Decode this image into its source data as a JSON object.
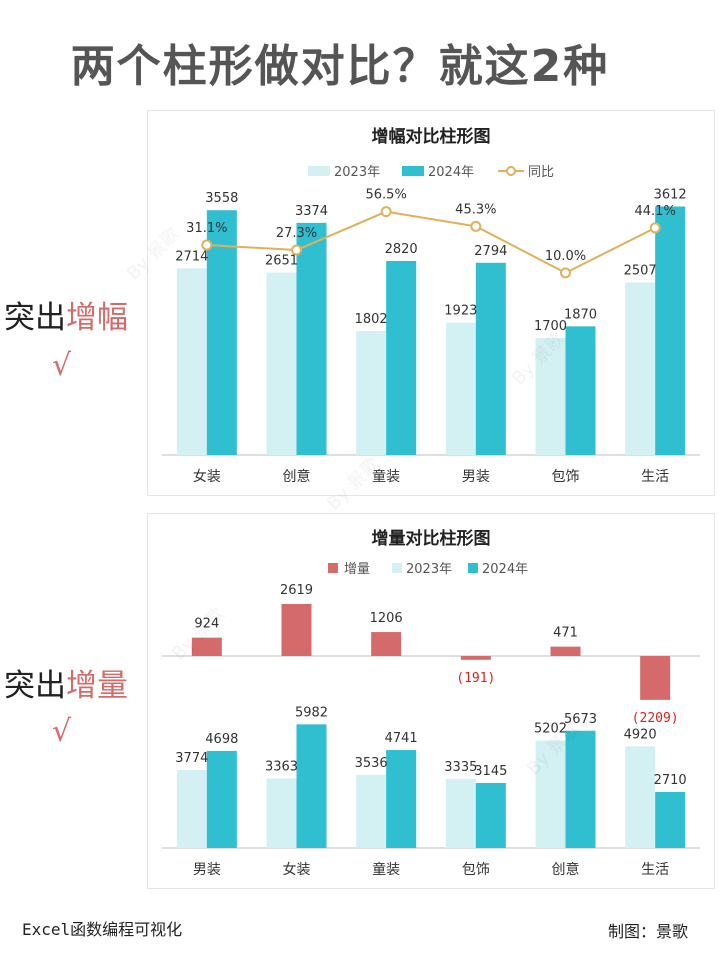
{
  "page": {
    "title": "两个柱形做对比？就这2种",
    "side_label_1_prefix": "突出",
    "side_label_1_highlight": "增幅",
    "side_label_2_prefix": "突出",
    "side_label_2_highlight": "增量",
    "check_mark": "√",
    "footer_left": "Excel函数编程可视化",
    "footer_right": "制图：景歌",
    "watermark": "By 景歌"
  },
  "colors": {
    "bar_2023": "#d3f0f3",
    "bar_2024": "#2fbfd1",
    "line": "#e0b05a",
    "increment": "#d46a6a",
    "negative_label": "#e02020",
    "highlight": "#d46a6a"
  },
  "chart_data": [
    {
      "type": "bar",
      "title": "增幅对比柱形图",
      "categories": [
        "女装",
        "创意",
        "童装",
        "男装",
        "包饰",
        "生活"
      ],
      "series": [
        {
          "name": "2023年",
          "values": [
            2714,
            2651,
            1802,
            1923,
            1700,
            2507
          ]
        },
        {
          "name": "2024年",
          "values": [
            3558,
            3374,
            2820,
            2794,
            1870,
            3612
          ]
        }
      ],
      "line_series": {
        "name": "同比",
        "values": [
          31.1,
          27.3,
          56.5,
          45.3,
          10.0,
          44.1
        ],
        "labels": [
          "31.1%",
          "27.3%",
          "56.5%",
          "45.3%",
          "10.0%",
          "44.1%"
        ]
      },
      "legend": "top",
      "grid": false
    },
    {
      "type": "bar",
      "title": "增量对比柱形图",
      "categories": [
        "男装",
        "女装",
        "童装",
        "包饰",
        "创意",
        "生活"
      ],
      "series": [
        {
          "name": "增量",
          "values": [
            924,
            2619,
            1206,
            -191,
            471,
            -2209
          ],
          "labels": [
            "924",
            "2619",
            "1206",
            "(191)",
            "471",
            "(2209)"
          ]
        },
        {
          "name": "2023年",
          "values": [
            3774,
            3363,
            3536,
            3335,
            5202,
            4920
          ]
        },
        {
          "name": "2024年",
          "values": [
            4698,
            5982,
            4741,
            3145,
            5673,
            2710
          ]
        }
      ],
      "legend": "top",
      "grid": false
    }
  ]
}
